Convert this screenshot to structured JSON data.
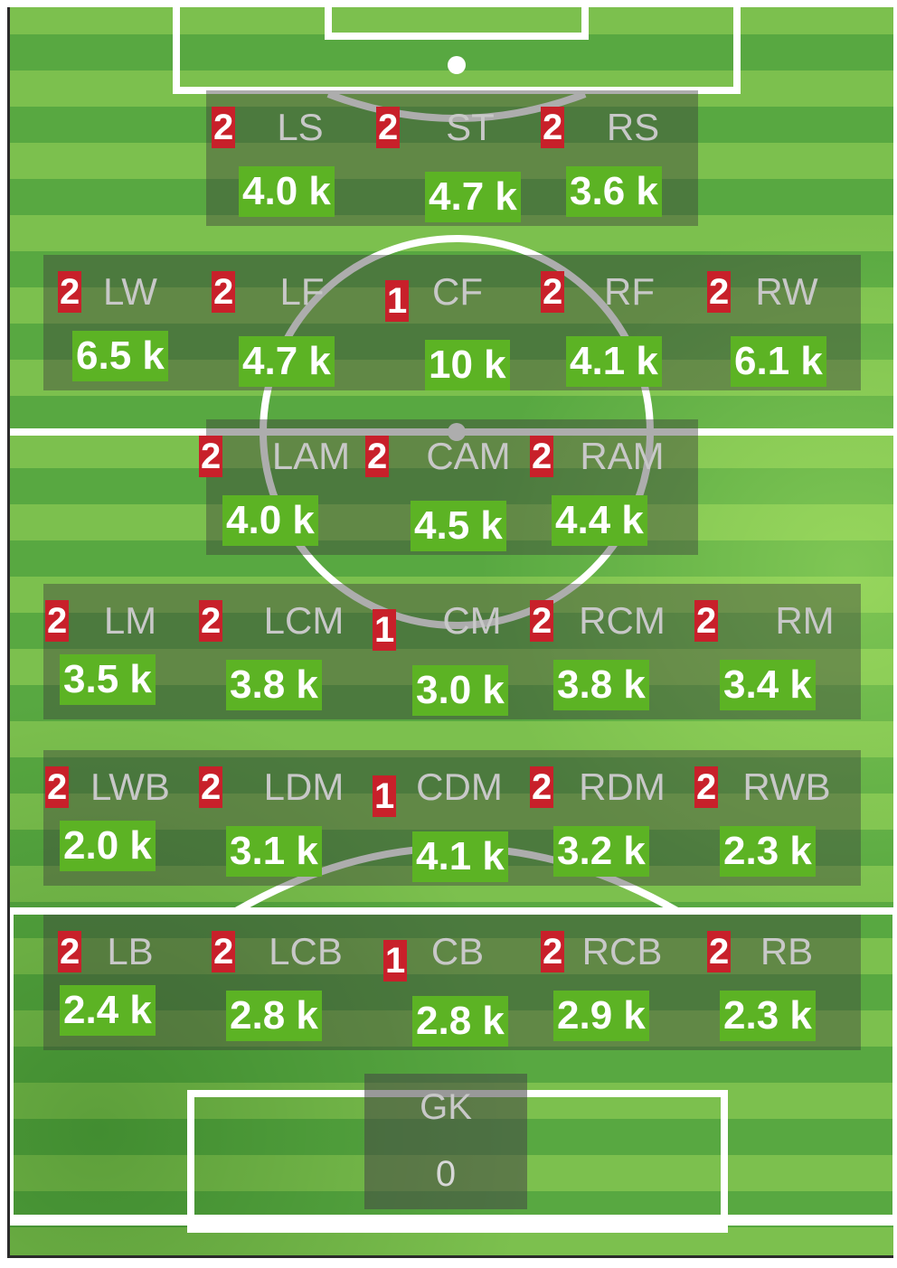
{
  "rows": [
    {
      "name": "striker-row",
      "slots": [
        {
          "pos": "LS",
          "count": "2",
          "value": "4.0 k"
        },
        {
          "pos": "ST",
          "count": "2",
          "value": "4.7 k"
        },
        {
          "pos": "RS",
          "count": "2",
          "value": "3.6 k"
        }
      ]
    },
    {
      "name": "forward-row",
      "slots": [
        {
          "pos": "LW",
          "count": "2",
          "value": "6.5 k"
        },
        {
          "pos": "LF",
          "count": "2",
          "value": "4.7 k"
        },
        {
          "pos": "CF",
          "count": "1",
          "value": "10 k"
        },
        {
          "pos": "RF",
          "count": "2",
          "value": "4.1 k"
        },
        {
          "pos": "RW",
          "count": "2",
          "value": "6.1 k"
        }
      ]
    },
    {
      "name": "attacking-mid-row",
      "slots": [
        {
          "pos": "LAM",
          "count": "2",
          "value": "4.0 k"
        },
        {
          "pos": "CAM",
          "count": "2",
          "value": "4.5 k"
        },
        {
          "pos": "RAM",
          "count": "2",
          "value": "4.4 k"
        }
      ]
    },
    {
      "name": "midfield-row",
      "slots": [
        {
          "pos": "LM",
          "count": "2",
          "value": "3.5 k"
        },
        {
          "pos": "LCM",
          "count": "2",
          "value": "3.8 k"
        },
        {
          "pos": "CM",
          "count": "1",
          "value": "3.0 k"
        },
        {
          "pos": "RCM",
          "count": "2",
          "value": "3.8 k"
        },
        {
          "pos": "RM",
          "count": "2",
          "value": "3.4 k"
        }
      ]
    },
    {
      "name": "defensive-mid-row",
      "slots": [
        {
          "pos": "LWB",
          "count": "2",
          "value": "2.0 k"
        },
        {
          "pos": "LDM",
          "count": "2",
          "value": "3.1 k"
        },
        {
          "pos": "CDM",
          "count": "1",
          "value": "4.1 k"
        },
        {
          "pos": "RDM",
          "count": "2",
          "value": "3.2 k"
        },
        {
          "pos": "RWB",
          "count": "2",
          "value": "2.3 k"
        }
      ]
    },
    {
      "name": "defence-row",
      "slots": [
        {
          "pos": "LB",
          "count": "2",
          "value": "2.4 k"
        },
        {
          "pos": "LCB",
          "count": "2",
          "value": "2.8 k"
        },
        {
          "pos": "CB",
          "count": "1",
          "value": "2.8 k"
        },
        {
          "pos": "RCB",
          "count": "2",
          "value": "2.9 k"
        },
        {
          "pos": "RB",
          "count": "2",
          "value": "2.3 k"
        }
      ]
    }
  ],
  "goalkeeper": {
    "pos": "GK",
    "value": "0"
  },
  "colors": {
    "count_badge": "#c8202a",
    "value_badge": "#5cb324",
    "pitch": "#58a841"
  }
}
